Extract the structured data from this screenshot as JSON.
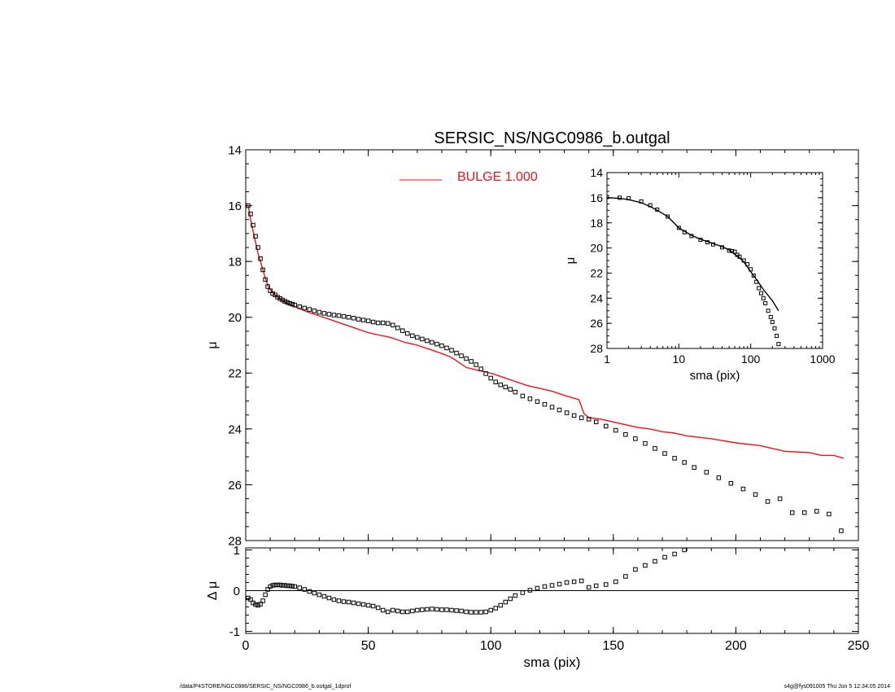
{
  "footer": {
    "path": "/data/P4STORE/NGC0986/SERSIC_NS/NGC0986_b.outgal_1dprof",
    "stamp": "s4g@fys091005  Thu Jun  5 12:34:05 2014"
  },
  "colors": {
    "model": "#e8141e",
    "data": "#000000",
    "axes": "#000000"
  },
  "chart_data": [
    {
      "type": "scatter",
      "title": "SERSIC_NS/NGC0986_b.outgal",
      "xlabel": "",
      "ylabel": "μ",
      "xlim": [
        0,
        250
      ],
      "ylim": [
        28,
        14
      ],
      "y_inverted": true,
      "xticks": [
        0,
        50,
        100,
        150,
        200,
        250
      ],
      "yticks": [
        14,
        16,
        18,
        20,
        22,
        24,
        26,
        28
      ],
      "x_tick_labels_shown": false,
      "legend": {
        "label": "BULGE  1.000",
        "position": "top-center"
      },
      "series": [
        {
          "name": "BULGE  1.000",
          "kind": "line",
          "color": "#e8141e",
          "x": [
            1,
            2,
            3,
            4,
            5,
            6,
            7,
            8,
            9,
            10,
            11,
            12,
            14,
            16,
            18,
            20,
            25,
            30,
            35,
            40,
            45,
            50,
            55,
            58,
            60,
            65,
            70,
            75,
            80,
            83,
            85,
            90,
            95,
            100,
            105,
            110,
            115,
            120,
            125,
            130,
            136,
            138,
            140,
            145,
            150,
            155,
            160,
            165,
            170,
            175,
            180,
            190,
            200,
            210,
            215,
            220,
            230,
            235,
            240,
            244
          ],
          "y": [
            16.0,
            16.5,
            16.9,
            17.3,
            17.7,
            18.0,
            18.3,
            18.6,
            18.85,
            19.0,
            19.1,
            19.2,
            19.35,
            19.45,
            19.55,
            19.62,
            19.8,
            19.95,
            20.1,
            20.25,
            20.4,
            20.55,
            20.65,
            20.7,
            20.75,
            20.9,
            21.0,
            21.15,
            21.3,
            21.4,
            21.5,
            21.8,
            21.9,
            22.0,
            22.15,
            22.3,
            22.45,
            22.55,
            22.65,
            22.8,
            22.95,
            23.45,
            23.6,
            23.65,
            23.75,
            23.85,
            23.95,
            24.0,
            24.1,
            24.15,
            24.25,
            24.35,
            24.5,
            24.6,
            24.7,
            24.8,
            24.85,
            24.95,
            24.95,
            25.05
          ]
        },
        {
          "name": "",
          "kind": "points",
          "color": "#000000",
          "x": [
            1,
            2,
            3,
            4,
            5,
            6,
            7,
            8,
            9,
            10,
            11,
            12,
            13,
            14,
            15,
            16,
            17,
            18,
            19,
            20,
            22,
            24,
            26,
            28,
            30,
            32,
            34,
            36,
            38,
            40,
            42,
            44,
            46,
            48,
            50,
            52,
            54,
            56,
            58,
            60,
            62,
            64,
            66,
            68,
            70,
            72,
            74,
            76,
            78,
            80,
            82,
            84,
            86,
            88,
            90,
            92,
            94,
            96,
            98,
            100,
            102,
            104,
            106,
            108,
            110,
            113,
            116,
            119,
            122,
            125,
            128,
            131,
            134,
            137,
            140,
            143,
            147,
            151,
            155,
            159,
            163,
            167,
            171,
            175,
            179,
            183,
            188,
            193,
            198,
            203,
            208,
            213,
            218,
            223,
            228,
            233,
            238,
            243
          ],
          "y": [
            16.0,
            16.3,
            16.7,
            17.1,
            17.5,
            17.9,
            18.3,
            18.65,
            18.9,
            19.05,
            19.15,
            19.2,
            19.28,
            19.33,
            19.38,
            19.43,
            19.47,
            19.5,
            19.53,
            19.56,
            19.62,
            19.67,
            19.72,
            19.77,
            19.82,
            19.86,
            19.89,
            19.92,
            19.94,
            19.97,
            20.0,
            20.03,
            20.07,
            20.1,
            20.13,
            20.17,
            20.2,
            20.2,
            20.22,
            20.28,
            20.38,
            20.48,
            20.58,
            20.66,
            20.72,
            20.78,
            20.84,
            20.9,
            20.96,
            21.02,
            21.1,
            21.18,
            21.28,
            21.38,
            21.48,
            21.58,
            21.7,
            21.85,
            22.02,
            22.18,
            22.32,
            22.42,
            22.5,
            22.58,
            22.68,
            22.82,
            22.92,
            23.02,
            23.12,
            23.22,
            23.32,
            23.42,
            23.52,
            23.6,
            23.65,
            23.75,
            23.9,
            24.05,
            24.2,
            24.35,
            24.52,
            24.7,
            24.88,
            25.05,
            25.2,
            25.38,
            25.55,
            25.75,
            25.95,
            26.15,
            26.35,
            26.6,
            26.5,
            27.0,
            27.0,
            26.95,
            27.05,
            27.65
          ]
        }
      ]
    },
    {
      "type": "scatter",
      "xlabel": "sma (pix)",
      "ylabel": "Δ μ",
      "xlim": [
        0,
        250
      ],
      "ylim": [
        -1.05,
        1.05
      ],
      "xticks": [
        0,
        50,
        100,
        150,
        200,
        250
      ],
      "yticks": [
        -1,
        0,
        1
      ],
      "zero_line": true,
      "series": [
        {
          "name": "",
          "kind": "points",
          "color": "#000000",
          "x": [
            1,
            2,
            3,
            4,
            5,
            6,
            7,
            8,
            9,
            10,
            11,
            12,
            13,
            14,
            15,
            16,
            17,
            18,
            19,
            20,
            22,
            24,
            26,
            28,
            30,
            32,
            34,
            36,
            38,
            40,
            42,
            44,
            46,
            48,
            50,
            52,
            54,
            56,
            58,
            60,
            62,
            64,
            66,
            68,
            70,
            72,
            74,
            76,
            78,
            80,
            82,
            84,
            86,
            88,
            90,
            92,
            94,
            96,
            98,
            100,
            102,
            104,
            106,
            108,
            110,
            113,
            116,
            119,
            122,
            125,
            128,
            131,
            134,
            137,
            140,
            143,
            147,
            151,
            155,
            159,
            163,
            167,
            171,
            175,
            179
          ],
          "y": [
            -0.18,
            -0.22,
            -0.3,
            -0.34,
            -0.36,
            -0.33,
            -0.25,
            -0.1,
            0.03,
            0.1,
            0.13,
            0.14,
            0.14,
            0.14,
            0.13,
            0.13,
            0.12,
            0.12,
            0.11,
            0.1,
            0.07,
            0.03,
            -0.02,
            -0.06,
            -0.1,
            -0.14,
            -0.18,
            -0.22,
            -0.25,
            -0.27,
            -0.28,
            -0.3,
            -0.32,
            -0.34,
            -0.36,
            -0.38,
            -0.42,
            -0.48,
            -0.52,
            -0.48,
            -0.5,
            -0.52,
            -0.52,
            -0.5,
            -0.48,
            -0.47,
            -0.46,
            -0.45,
            -0.46,
            -0.47,
            -0.47,
            -0.48,
            -0.49,
            -0.5,
            -0.52,
            -0.53,
            -0.53,
            -0.53,
            -0.52,
            -0.48,
            -0.43,
            -0.36,
            -0.28,
            -0.2,
            -0.12,
            -0.05,
            0.01,
            0.06,
            0.1,
            0.13,
            0.16,
            0.2,
            0.22,
            0.24,
            0.08,
            0.12,
            0.15,
            0.22,
            0.35,
            0.52,
            0.62,
            0.72,
            0.82,
            0.9,
            1.0
          ]
        }
      ]
    },
    {
      "type": "scatter",
      "xlabel": "sma (pix)",
      "ylabel": "μ",
      "x_scale": "log",
      "xlim": [
        1,
        1000
      ],
      "ylim": [
        28,
        14
      ],
      "y_inverted": true,
      "xticks": [
        1,
        10,
        100,
        1000
      ],
      "yticks": [
        14,
        16,
        18,
        20,
        22,
        24,
        26,
        28
      ],
      "series": [
        {
          "name": "",
          "kind": "line",
          "color": "#000000",
          "x": [
            1,
            1.5,
            2,
            3,
            4,
            5,
            7,
            10,
            15,
            20,
            30,
            40,
            50,
            60,
            70,
            80,
            100,
            120,
            150,
            200,
            244
          ],
          "y": [
            16.0,
            16.05,
            16.15,
            16.4,
            16.7,
            17.0,
            17.5,
            18.4,
            19.0,
            19.3,
            19.65,
            19.9,
            20.15,
            20.5,
            20.8,
            21.1,
            21.9,
            22.5,
            23.3,
            24.2,
            25.0
          ]
        },
        {
          "name": "",
          "kind": "points",
          "color": "#000000",
          "x": [
            1,
            1.5,
            2,
            3,
            4,
            5,
            7,
            10,
            12,
            15,
            20,
            25,
            30,
            40,
            50,
            55,
            60,
            65,
            70,
            80,
            90,
            100,
            110,
            120,
            130,
            140,
            150,
            160,
            175,
            190,
            200,
            215,
            230,
            244
          ],
          "y": [
            15.95,
            16.0,
            16.05,
            16.3,
            16.6,
            16.95,
            17.5,
            18.4,
            18.75,
            19.05,
            19.35,
            19.55,
            19.72,
            19.95,
            20.2,
            20.25,
            20.3,
            20.55,
            20.7,
            21.0,
            21.3,
            21.7,
            22.2,
            22.7,
            23.2,
            23.6,
            24.0,
            24.4,
            25.0,
            25.5,
            25.9,
            26.4,
            27.0,
            27.65
          ]
        }
      ]
    }
  ]
}
